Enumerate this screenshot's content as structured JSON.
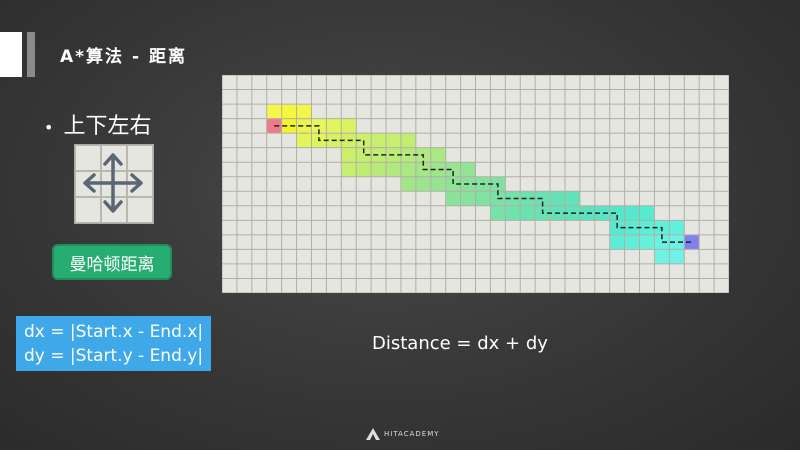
{
  "title": "A*算法 - 距离",
  "bullet": {
    "dot": "•",
    "text": "上下左右"
  },
  "badge": "曼哈顿距离",
  "formula": {
    "line1": "dx = |Start.x - End.x|",
    "line2": "dy = |Start.y - End.y|"
  },
  "distance_text": "Distance = dx + dy",
  "footer": "HITACADEMY",
  "icons": {
    "direction": "four-direction-arrows-icon",
    "footer_logo": "hitacademy-logo-icon"
  },
  "colors": {
    "accent_bar": "#ffffff",
    "grid_bg": "#e6e6e0",
    "grid_line": "#b0b0a8",
    "start": "#f07a8a",
    "end": "#8080ee",
    "path_line": "#222222",
    "badge": "#27ad72",
    "formula_bg": "#3fa8e8"
  },
  "grid": {
    "cols": 34,
    "rows": 15,
    "start": [
      3,
      3
    ],
    "end": [
      31,
      11
    ],
    "explored": [
      {
        "col": 3,
        "row": 2,
        "color": "#f6f64a"
      },
      {
        "col": 4,
        "row": 2,
        "color": "#f4f640"
      },
      {
        "col": 5,
        "row": 2,
        "color": "#f3f648"
      },
      {
        "col": 3,
        "row": 3,
        "color": "#f07a8a"
      },
      {
        "col": 4,
        "row": 3,
        "color": "#f2f42c"
      },
      {
        "col": 5,
        "row": 3,
        "color": "#ecf54e"
      },
      {
        "col": 6,
        "row": 3,
        "color": "#e8f55c"
      },
      {
        "col": 7,
        "row": 3,
        "color": "#e0f55e"
      },
      {
        "col": 8,
        "row": 3,
        "color": "#dcf262"
      },
      {
        "col": 5,
        "row": 4,
        "color": "#e4f55a"
      },
      {
        "col": 6,
        "row": 4,
        "color": "#dff45e"
      },
      {
        "col": 7,
        "row": 4,
        "color": "#d8f062"
      },
      {
        "col": 8,
        "row": 4,
        "color": "#d2ef66"
      },
      {
        "col": 9,
        "row": 4,
        "color": "#cef06a"
      },
      {
        "col": 10,
        "row": 4,
        "color": "#caef6c"
      },
      {
        "col": 11,
        "row": 4,
        "color": "#c6ee70"
      },
      {
        "col": 12,
        "row": 4,
        "color": "#c2ec72"
      },
      {
        "col": 8,
        "row": 5,
        "color": "#cdef6c"
      },
      {
        "col": 9,
        "row": 5,
        "color": "#c8ee70"
      },
      {
        "col": 10,
        "row": 5,
        "color": "#c2ec74"
      },
      {
        "col": 11,
        "row": 5,
        "color": "#bcec78"
      },
      {
        "col": 12,
        "row": 5,
        "color": "#b6ea7c"
      },
      {
        "col": 13,
        "row": 5,
        "color": "#b0e980"
      },
      {
        "col": 14,
        "row": 5,
        "color": "#aae884"
      },
      {
        "col": 8,
        "row": 6,
        "color": "#c6ee70"
      },
      {
        "col": 9,
        "row": 6,
        "color": "#c0ec74"
      },
      {
        "col": 10,
        "row": 6,
        "color": "#b8ea7a"
      },
      {
        "col": 11,
        "row": 6,
        "color": "#b2e97e"
      },
      {
        "col": 12,
        "row": 6,
        "color": "#aae884"
      },
      {
        "col": 13,
        "row": 6,
        "color": "#a4e688"
      },
      {
        "col": 14,
        "row": 6,
        "color": "#9ee58c"
      },
      {
        "col": 15,
        "row": 6,
        "color": "#98e490"
      },
      {
        "col": 16,
        "row": 6,
        "color": "#92e394"
      },
      {
        "col": 12,
        "row": 7,
        "color": "#a2e68a"
      },
      {
        "col": 13,
        "row": 7,
        "color": "#9ce58e"
      },
      {
        "col": 14,
        "row": 7,
        "color": "#96e492"
      },
      {
        "col": 15,
        "row": 7,
        "color": "#90e396"
      },
      {
        "col": 16,
        "row": 7,
        "color": "#8ae29a"
      },
      {
        "col": 17,
        "row": 7,
        "color": "#84e29e"
      },
      {
        "col": 18,
        "row": 7,
        "color": "#7ee2a2"
      },
      {
        "col": 15,
        "row": 8,
        "color": "#8ce29a"
      },
      {
        "col": 16,
        "row": 8,
        "color": "#86e29e"
      },
      {
        "col": 17,
        "row": 8,
        "color": "#80e2a2"
      },
      {
        "col": 18,
        "row": 8,
        "color": "#7ae2a6"
      },
      {
        "col": 19,
        "row": 8,
        "color": "#74e2aa"
      },
      {
        "col": 20,
        "row": 8,
        "color": "#6ee2ae"
      },
      {
        "col": 21,
        "row": 8,
        "color": "#68e2b2"
      },
      {
        "col": 22,
        "row": 8,
        "color": "#64e2b6"
      },
      {
        "col": 23,
        "row": 8,
        "color": "#60e2ba"
      },
      {
        "col": 18,
        "row": 9,
        "color": "#76e2a8"
      },
      {
        "col": 19,
        "row": 9,
        "color": "#70e2ac"
      },
      {
        "col": 20,
        "row": 9,
        "color": "#6ae2b0"
      },
      {
        "col": 21,
        "row": 9,
        "color": "#66e2b4"
      },
      {
        "col": 22,
        "row": 9,
        "color": "#62e2b8"
      },
      {
        "col": 23,
        "row": 9,
        "color": "#5ee2bc"
      },
      {
        "col": 24,
        "row": 9,
        "color": "#5ae2c0"
      },
      {
        "col": 25,
        "row": 9,
        "color": "#58e4c6"
      },
      {
        "col": 26,
        "row": 9,
        "color": "#56e6ca"
      },
      {
        "col": 27,
        "row": 9,
        "color": "#56e8ce"
      },
      {
        "col": 28,
        "row": 9,
        "color": "#58eace"
      },
      {
        "col": 26,
        "row": 10,
        "color": "#58eace"
      },
      {
        "col": 27,
        "row": 10,
        "color": "#5aecd2"
      },
      {
        "col": 28,
        "row": 10,
        "color": "#5ceed6"
      },
      {
        "col": 29,
        "row": 10,
        "color": "#5ef0da"
      },
      {
        "col": 30,
        "row": 10,
        "color": "#62f0de"
      },
      {
        "col": 26,
        "row": 11,
        "color": "#5ceed6"
      },
      {
        "col": 27,
        "row": 11,
        "color": "#60f0da"
      },
      {
        "col": 28,
        "row": 11,
        "color": "#64f2de"
      },
      {
        "col": 29,
        "row": 11,
        "color": "#68f2e2"
      },
      {
        "col": 30,
        "row": 11,
        "color": "#6cf2e4"
      },
      {
        "col": 31,
        "row": 11,
        "color": "#8080ee"
      },
      {
        "col": 29,
        "row": 12,
        "color": "#6ef2e6"
      },
      {
        "col": 30,
        "row": 12,
        "color": "#70f2e8"
      }
    ],
    "path": [
      [
        3,
        3
      ],
      [
        4,
        3
      ],
      [
        5,
        3
      ],
      [
        6,
        3
      ],
      [
        6,
        4
      ],
      [
        7,
        4
      ],
      [
        8,
        4
      ],
      [
        9,
        4
      ],
      [
        9,
        5
      ],
      [
        10,
        5
      ],
      [
        11,
        5
      ],
      [
        12,
        5
      ],
      [
        13,
        5
      ],
      [
        13,
        6
      ],
      [
        14,
        6
      ],
      [
        15,
        6
      ],
      [
        15,
        7
      ],
      [
        16,
        7
      ],
      [
        17,
        7
      ],
      [
        18,
        7
      ],
      [
        18,
        8
      ],
      [
        19,
        8
      ],
      [
        20,
        8
      ],
      [
        21,
        8
      ],
      [
        21,
        9
      ],
      [
        22,
        9
      ],
      [
        23,
        9
      ],
      [
        24,
        9
      ],
      [
        25,
        9
      ],
      [
        26,
        9
      ],
      [
        26,
        10
      ],
      [
        27,
        10
      ],
      [
        28,
        10
      ],
      [
        29,
        10
      ],
      [
        29,
        11
      ],
      [
        30,
        11
      ],
      [
        31,
        11
      ]
    ]
  }
}
